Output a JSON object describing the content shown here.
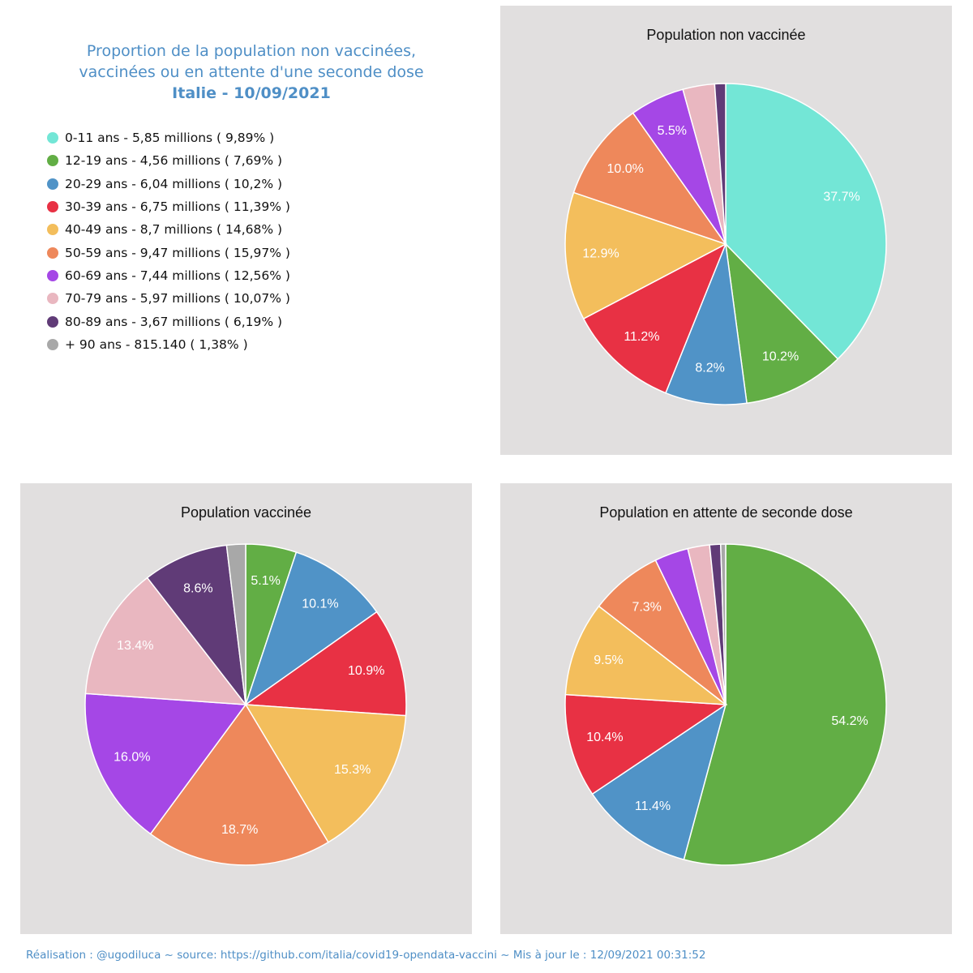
{
  "title": {
    "line1": "Proportion de la population non vaccinées,",
    "line2": "vaccinées ou en attente d'une seconde dose",
    "line3": "Italie - 10/09/2021"
  },
  "colors": {
    "age_0_11": "#73e6d6",
    "age_12_19": "#62ae45",
    "age_20_29": "#5093c7",
    "age_30_39": "#e83144",
    "age_40_49": "#f3be5c",
    "age_50_59": "#ee885b",
    "age_60_69": "#a547e6",
    "age_70_79": "#e9b7c0",
    "age_80_89": "#603b77",
    "age_90_plus": "#a8a8a8"
  },
  "legend": [
    {
      "label": "0-11 ans - 5,85 millions ( 9,89% )",
      "color": "#73e6d6"
    },
    {
      "label": "12-19 ans - 4,56 millions ( 7,69% )",
      "color": "#62ae45"
    },
    {
      "label": "20-29 ans - 6,04 millions ( 10,2% )",
      "color": "#5093c7"
    },
    {
      "label": "30-39 ans - 6,75 millions ( 11,39% )",
      "color": "#e83144"
    },
    {
      "label": "40-49 ans - 8,7 millions ( 14,68% )",
      "color": "#f3be5c"
    },
    {
      "label": "50-59 ans - 9,47 millions ( 15,97% )",
      "color": "#ee885b"
    },
    {
      "label": "60-69 ans - 7,44 millions ( 12,56% )",
      "color": "#a547e6"
    },
    {
      "label": "70-79 ans - 5,97 millions ( 10,07% )",
      "color": "#e9b7c0"
    },
    {
      "label": "80-89 ans - 3,67 millions ( 6,19% )",
      "color": "#603b77"
    },
    {
      "label": "+ 90 ans - 815.140 ( 1,38% )",
      "color": "#a8a8a8"
    }
  ],
  "chart_data": [
    {
      "type": "pie",
      "title": "Population non vaccinée",
      "categories": [
        "0-11 ans",
        "12-19 ans",
        "20-29 ans",
        "30-39 ans",
        "40-49 ans",
        "50-59 ans",
        "60-69 ans",
        "70-79 ans",
        "80-89 ans",
        "+ 90 ans"
      ],
      "values": [
        37.7,
        10.2,
        8.2,
        11.2,
        12.9,
        10.0,
        5.5,
        3.2,
        1.1,
        0.0
      ],
      "labels": [
        "37.7%",
        "10.2%",
        "8.2%",
        "11.2%",
        "12.9%",
        "10.0%",
        "5.5%",
        "",
        "",
        ""
      ]
    },
    {
      "type": "pie",
      "title": "Population vaccinée",
      "categories": [
        "0-11 ans",
        "12-19 ans",
        "20-29 ans",
        "30-39 ans",
        "40-49 ans",
        "50-59 ans",
        "60-69 ans",
        "70-79 ans",
        "80-89 ans",
        "+ 90 ans"
      ],
      "values": [
        0.0,
        5.1,
        10.1,
        10.9,
        15.3,
        18.7,
        16.0,
        13.4,
        8.6,
        1.9
      ],
      "labels": [
        "",
        "5.1%",
        "10.1%",
        "10.9%",
        "15.3%",
        "18.7%",
        "16.0%",
        "13.4%",
        "8.6%",
        ""
      ]
    },
    {
      "type": "pie",
      "title": "Population en attente de seconde dose",
      "categories": [
        "0-11 ans",
        "12-19 ans",
        "20-29 ans",
        "30-39 ans",
        "40-49 ans",
        "50-59 ans",
        "60-69 ans",
        "70-79 ans",
        "80-89 ans",
        "+ 90 ans"
      ],
      "values": [
        0.0,
        54.2,
        11.4,
        10.4,
        9.5,
        7.3,
        3.4,
        2.2,
        1.1,
        0.5
      ],
      "labels": [
        "",
        "54.2%",
        "11.4%",
        "10.4%",
        "9.5%",
        "7.3%",
        "",
        "",
        "",
        ""
      ]
    }
  ],
  "footer": "Réalisation : @ugodiluca ~ source: https://github.com/italia/covid19-opendata-vaccini ~ Mis à jour le : 12/09/2021 00:31:52"
}
